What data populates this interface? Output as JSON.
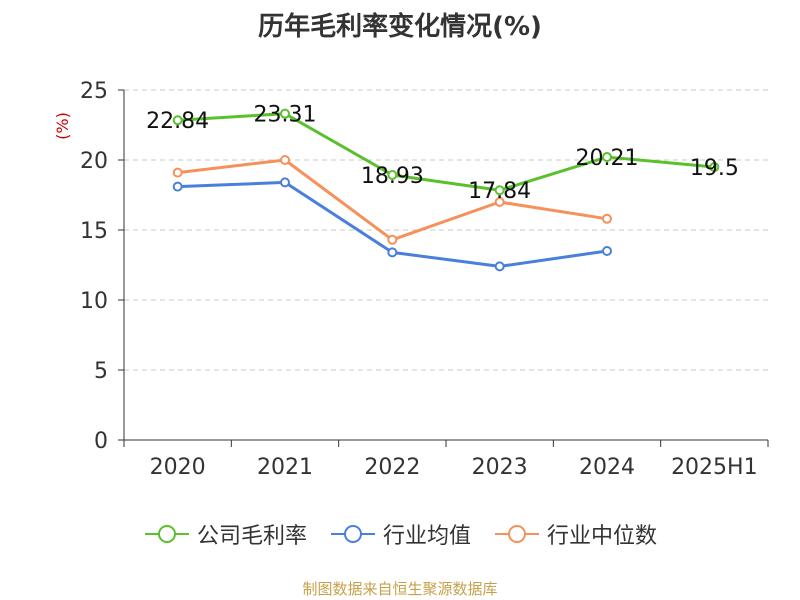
{
  "chart_data": {
    "type": "line",
    "title": "历年毛利率变化情况(%)",
    "ylabel": "(%)",
    "xlabel": "",
    "categories": [
      "2020",
      "2021",
      "2022",
      "2023",
      "2024",
      "2025H1"
    ],
    "ylim": [
      0,
      25
    ],
    "yticks": [
      0,
      5,
      10,
      15,
      20,
      25
    ],
    "grid": true,
    "legend_position": "bottom",
    "series": [
      {
        "name": "公司毛利率",
        "color": "#5ac02c",
        "values": [
          22.84,
          23.31,
          18.93,
          17.84,
          20.21,
          19.5
        ],
        "labels": [
          "22.84",
          "23.31",
          "18.93",
          "17.84",
          "20.21",
          "19.5"
        ],
        "show_labels": true
      },
      {
        "name": "行业均值",
        "color": "#4a7fdc",
        "values": [
          18.1,
          18.4,
          13.4,
          12.4,
          13.5,
          null
        ],
        "show_labels": false
      },
      {
        "name": "行业中位数",
        "color": "#f5915a",
        "values": [
          19.1,
          20.0,
          14.3,
          17.0,
          15.8,
          null
        ],
        "show_labels": false
      }
    ]
  },
  "footer": {
    "source": "制图数据来自恒生聚源数据库"
  }
}
